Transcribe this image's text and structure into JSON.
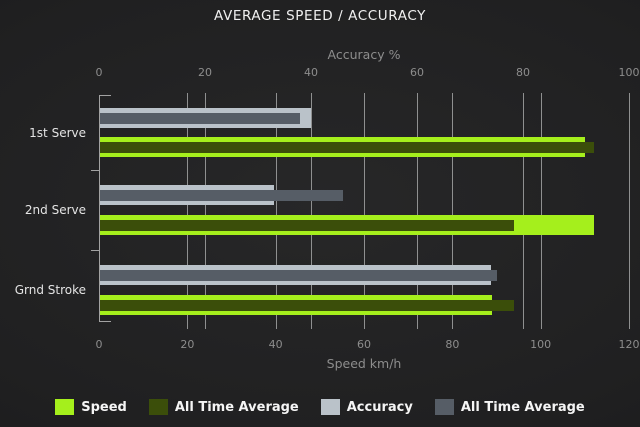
{
  "title": "AVERAGE SPEED / ACCURACY",
  "chart_data": {
    "type": "bar",
    "orientation": "horizontal",
    "grid": true,
    "legend_position": "bottom",
    "categories": [
      "1st Serve",
      "2nd Serve",
      "Grnd Stroke"
    ],
    "top_axis": {
      "label": "Accuracy %",
      "ticks": [
        0,
        20,
        40,
        60,
        80,
        100
      ],
      "range": [
        0,
        100
      ]
    },
    "bottom_axis": {
      "label": "Speed km/h",
      "ticks": [
        0,
        20,
        40,
        60,
        80,
        100,
        120
      ],
      "range": [
        0,
        120
      ]
    },
    "series": [
      {
        "name": "Speed",
        "axis": "bottom",
        "role": "outer",
        "color": "#a5ef1c",
        "values": [
          110,
          112,
          89
        ]
      },
      {
        "name": "All Time Average",
        "axis": "bottom",
        "role": "inner",
        "color": "#3b4e0a",
        "values": [
          112,
          94,
          94
        ]
      },
      {
        "name": "Accuracy",
        "axis": "top",
        "role": "outer",
        "color": "#bac2c9",
        "values": [
          40,
          33,
          74
        ]
      },
      {
        "name": "All Time Average",
        "axis": "top",
        "role": "inner",
        "color": "#565d66",
        "values": [
          38,
          46,
          75
        ]
      }
    ]
  },
  "legend": [
    {
      "label": "Speed",
      "color": "#a5ef1c"
    },
    {
      "label": "All Time Average",
      "color": "#3b4e0a"
    },
    {
      "label": "Accuracy",
      "color": "#bac2c9"
    },
    {
      "label": "All Time Average",
      "color": "#565d66"
    }
  ],
  "colors": {
    "background": "#1e1e1f",
    "gridline": "#8f9090",
    "title_text": "#f0f0f0",
    "axis_text": "#8d8d8d",
    "category_text": "#e4e4e4",
    "legend_text": "#f5f5f5"
  }
}
